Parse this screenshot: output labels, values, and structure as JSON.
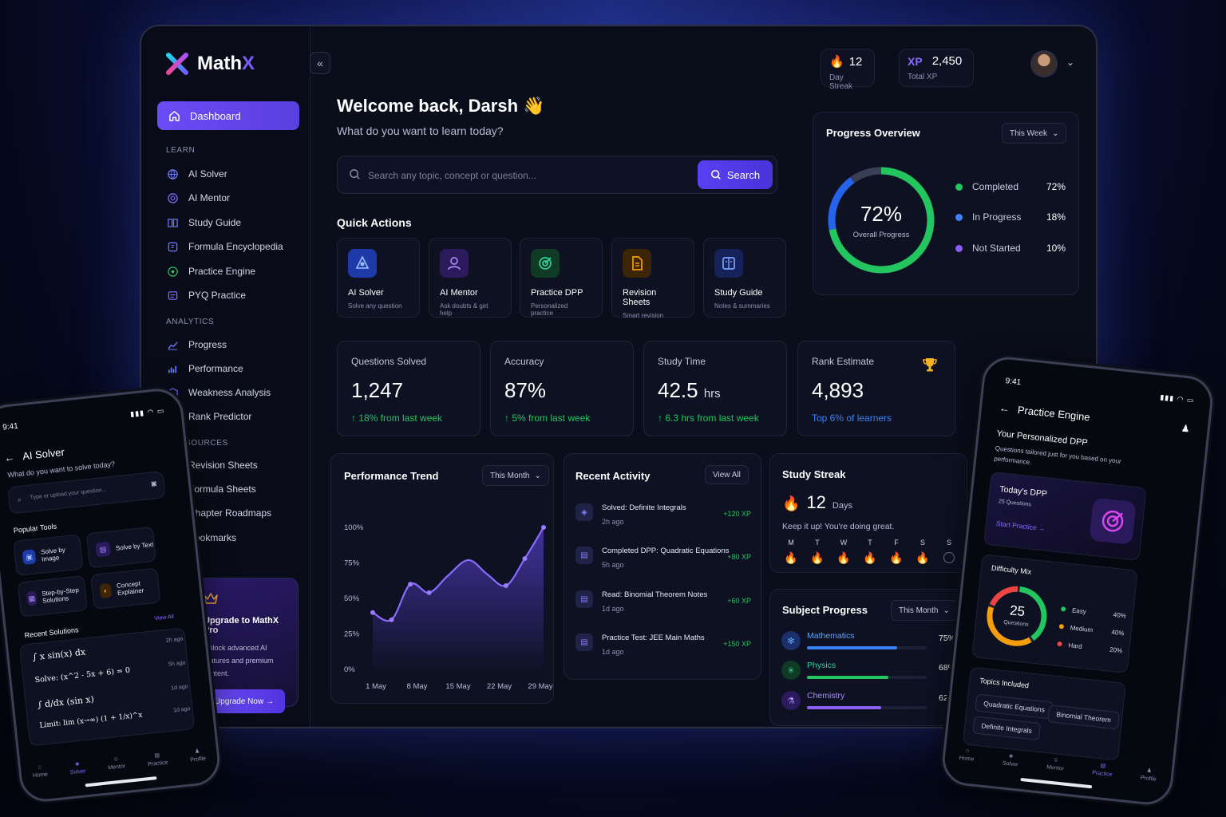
{
  "app": {
    "name_main": "Math",
    "name_accent": "X"
  },
  "sidebar": {
    "dashboard": "Dashboard",
    "sections": {
      "learn": "LEARN",
      "analytics": "ANALYTICS",
      "resources": "RESOURCES"
    },
    "learn": [
      "AI Solver",
      "AI Mentor",
      "Study Guide",
      "Formula Encyclopedia",
      "Practice Engine",
      "PYQ Practice"
    ],
    "analytics": [
      "Progress",
      "Performance",
      "Weakness Analysis",
      "Rank Predictor"
    ],
    "resources": [
      "Revision Sheets",
      "Formula Sheets",
      "Chapter Roadmaps",
      "Bookmarks"
    ],
    "upgrade": {
      "title": "Upgrade to MathX Pro",
      "sub": "Unlock advanced AI features and premium content.",
      "button": "Upgrade Now →"
    }
  },
  "topbar": {
    "streak_value": "12",
    "streak_label": "Day Streak",
    "xp_badge": "XP",
    "xp_value": "2,450",
    "xp_label": "Total XP"
  },
  "welcome": {
    "title": "Welcome back, Darsh 👋",
    "sub": "What do you want to learn today?"
  },
  "search": {
    "placeholder": "Search any topic, concept or question...",
    "button": "Search"
  },
  "quick_actions": {
    "title": "Quick Actions",
    "items": [
      {
        "title": "AI Solver",
        "sub": "Solve any question",
        "color": "#2b63f5"
      },
      {
        "title": "AI Mentor",
        "sub": "Ask doubts & get help",
        "color": "#8b5cf6"
      },
      {
        "title": "Practice DPP",
        "sub": "Personalized practice",
        "color": "#22c55e"
      },
      {
        "title": "Revision Sheets",
        "sub": "Smart revision",
        "color": "#f59e0b"
      },
      {
        "title": "Study Guide",
        "sub": "Notes & summaries",
        "color": "#3b82f6"
      }
    ]
  },
  "metrics": [
    {
      "label": "Questions Solved",
      "value": "1,247",
      "unit": "",
      "delta": "↑ 18% from last week"
    },
    {
      "label": "Accuracy",
      "value": "87%",
      "unit": "",
      "delta": "↑ 5% from last week"
    },
    {
      "label": "Study Time",
      "value": "42.5",
      "unit": "hrs",
      "delta": "↑ 6.3 hrs from last week"
    },
    {
      "label": "Rank Estimate",
      "value": "4,893",
      "unit": "",
      "delta": "Top 6% of learners"
    }
  ],
  "progress_overview": {
    "title": "Progress Overview",
    "range": "This Week",
    "center_value": "72%",
    "center_label": "Overall Progress",
    "legend": [
      {
        "label": "Completed",
        "value": "72%",
        "color": "#22c55e"
      },
      {
        "label": "In Progress",
        "value": "18%",
        "color": "#3b82f6"
      },
      {
        "label": "Not Started",
        "value": "10%",
        "color": "#8b5cf6"
      }
    ]
  },
  "chart_data": {
    "type": "line",
    "title": "Performance Trend",
    "range": "This Month",
    "x_ticks": [
      "1 May",
      "8 May",
      "15 May",
      "22 May",
      "29 May"
    ],
    "y_ticks": [
      "100%",
      "75%",
      "50%",
      "25%",
      "0%"
    ],
    "ylim": [
      0,
      100
    ],
    "xlim": [
      0,
      100
    ],
    "series": [
      {
        "points": [
          [
            0,
            40
          ],
          [
            11,
            35
          ],
          [
            22,
            60
          ],
          [
            33,
            54
          ],
          [
            44,
            66
          ],
          [
            56,
            77
          ],
          [
            67,
            67
          ],
          [
            78,
            59
          ],
          [
            89,
            78
          ],
          [
            100,
            100
          ]
        ]
      }
    ],
    "markers": [
      [
        0,
        40
      ],
      [
        11,
        35
      ],
      [
        22,
        60
      ],
      [
        33,
        54
      ],
      [
        78,
        59
      ],
      [
        89,
        78
      ],
      [
        100,
        100
      ]
    ]
  },
  "activity": {
    "title": "Recent Activity",
    "view_all": "View All",
    "items": [
      {
        "title": "Solved: Definite Integrals",
        "time": "2h ago",
        "xp": "+120 XP"
      },
      {
        "title": "Completed DPP: Quadratic Equations",
        "time": "5h ago",
        "xp": "+80 XP"
      },
      {
        "title": "Read: Binomial Theorem Notes",
        "time": "1d ago",
        "xp": "+60 XP"
      },
      {
        "title": "Practice Test: JEE Main Maths",
        "time": "1d ago",
        "xp": "+150 XP"
      }
    ]
  },
  "streak": {
    "title": "Study Streak",
    "value": "12",
    "unit": "Days",
    "message": "Keep it up! You're doing great.",
    "days": [
      "M",
      "T",
      "W",
      "T",
      "F",
      "S",
      "S"
    ],
    "done": [
      true,
      true,
      true,
      true,
      true,
      true,
      false
    ]
  },
  "subjects": {
    "title": "Subject Progress",
    "range": "This Month",
    "items": [
      {
        "name": "Mathematics",
        "value": "75%",
        "fraction": 0.75,
        "color": "#3b82f6"
      },
      {
        "name": "Physics",
        "value": "68%",
        "fraction": 0.68,
        "color": "#22c55e"
      },
      {
        "name": "Chemistry",
        "value": "62%",
        "fraction": 0.62,
        "color": "#8b5cf6"
      }
    ]
  },
  "phone_left": {
    "time": "9:41",
    "title": "AI Solver",
    "sub": "What do you want to solve today?",
    "input_placeholder": "Type or upload your question...",
    "popular_title": "Popular Tools",
    "tools": [
      "Solve by Image",
      "Solve by Text",
      "Step-by-Step Solutions",
      "Concept Explainer"
    ],
    "recent_title": "Recent Solutions",
    "view_all": "View All",
    "solutions": [
      {
        "expr": "∫ x sin(x) dx",
        "ago": "2h ago"
      },
      {
        "expr": "Solve: (x^2 - 5x + 6) = 0",
        "ago": "5h ago"
      },
      {
        "expr": "∫ d/dx (sin x)",
        "ago": "1d ago"
      },
      {
        "expr": "Limit: lim (x→∞) (1 + 1/x)^x",
        "ago": "1d ago"
      }
    ],
    "nav": [
      "Home",
      "Solver",
      "Mentor",
      "Practice",
      "Profile"
    ]
  },
  "phone_right": {
    "time": "9:41",
    "title": "Practice Engine",
    "dpp_title": "Your Personalized DPP",
    "dpp_sub": "Questions tailored just for you based on your performance.",
    "today_title": "Today's DPP",
    "today_sub": "25 Questions",
    "start": "Start Practice →",
    "difficulty_title": "Difficulty Mix",
    "donut_value": "25",
    "donut_label": "Questions",
    "difficulty": [
      {
        "label": "Easy",
        "value": "40%",
        "color": "#22c55e"
      },
      {
        "label": "Medium",
        "value": "40%",
        "color": "#f59e0b"
      },
      {
        "label": "Hard",
        "value": "20%",
        "color": "#ef4444"
      }
    ],
    "topics_title": "Topics Included",
    "topics": [
      "Quadratic Equations",
      "Binomial Theorem",
      "Definite Integrals"
    ],
    "nav": [
      "Home",
      "Solver",
      "Mentor",
      "Practice",
      "Profile"
    ]
  }
}
